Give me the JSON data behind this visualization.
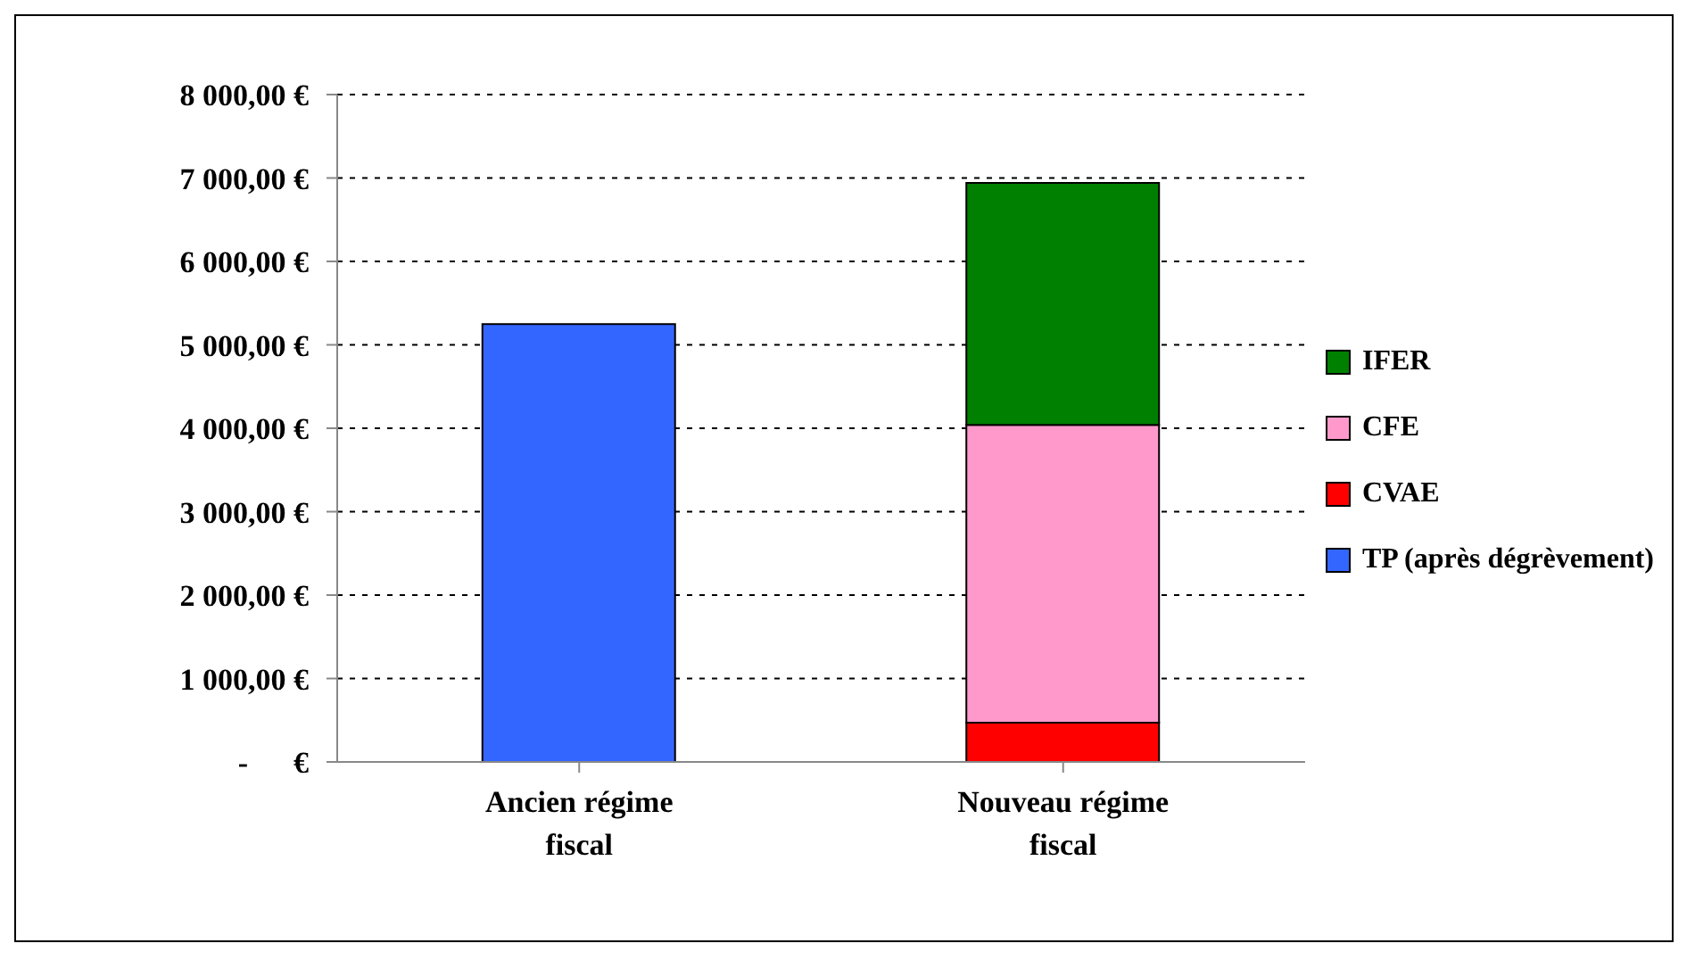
{
  "chart_data": {
    "type": "bar",
    "stacked": true,
    "categories": [
      "Ancien régime fiscal",
      "Nouveau régime fiscal"
    ],
    "series": [
      {
        "name": "TP (après dégrèvement)",
        "color": "#3366ff",
        "values": [
          5250,
          null
        ]
      },
      {
        "name": "CVAE",
        "color": "#ff0000",
        "values": [
          null,
          470
        ]
      },
      {
        "name": "CFE",
        "color": "#ff99cc",
        "values": [
          null,
          3570
        ]
      },
      {
        "name": "IFER",
        "color": "#008000",
        "values": [
          null,
          2900
        ]
      }
    ],
    "ylim": [
      0,
      8000
    ],
    "yticks": [
      {
        "value": 0,
        "label": "-      €"
      },
      {
        "value": 1000,
        "label": "1 000,00 €"
      },
      {
        "value": 2000,
        "label": "2 000,00 €"
      },
      {
        "value": 3000,
        "label": "3 000,00 €"
      },
      {
        "value": 4000,
        "label": "4 000,00 €"
      },
      {
        "value": 5000,
        "label": "5 000,00 €"
      },
      {
        "value": 6000,
        "label": "6 000,00 €"
      },
      {
        "value": 7000,
        "label": "7 000,00 €"
      },
      {
        "value": 8000,
        "label": "8 000,00 €"
      }
    ],
    "grid": "y",
    "legend": "right"
  }
}
